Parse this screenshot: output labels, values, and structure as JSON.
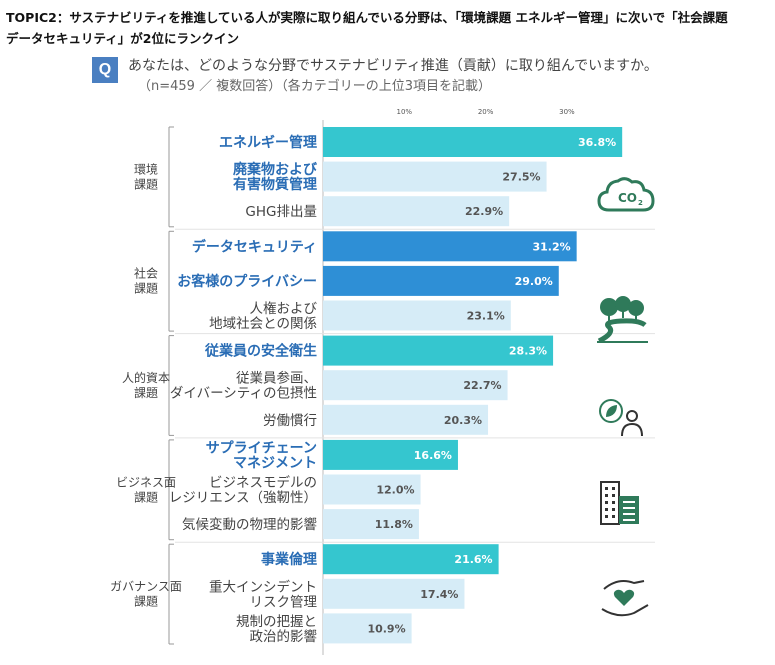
{
  "headline": {
    "line1": "TOPIC2：サステナビリティを推進している人が実際に取り組んでいる分野は、「環境課題 エネルギー管理」に次いで「社会課題",
    "line2": "データセキュリティ」が2位にランクイン"
  },
  "question": {
    "badge": "Q",
    "text": "あなたは、どのような分野でサステナビリティ推進（貢献）に取り組んでいますか。",
    "sub": "（n=459 ／ 複数回答）（各カテゴリーの上位3項目を記載）"
  },
  "colors": {
    "teal": "#35c6cf",
    "blue": "#2e8fd6",
    "light": "#d6ecf7",
    "icon": "#2f7a5a"
  },
  "chart_data": {
    "type": "bar",
    "orientation": "horizontal",
    "unit": "%",
    "xaxis_ticks": [
      "10%",
      "20%",
      "30%"
    ],
    "xlim": [
      0,
      40
    ],
    "groups": [
      {
        "label": "環境\n課題",
        "icon": "co2-cloud-icon",
        "items": [
          {
            "label": "エネルギー管理",
            "value": 36.8,
            "value_label": "36.8%",
            "style": "teal"
          },
          {
            "label": "廃棄物および\n有害物質管理",
            "value": 27.5,
            "value_label": "27.5%",
            "style": "light-hl"
          },
          {
            "label": "GHG排出量",
            "value": 22.9,
            "value_label": "22.9%",
            "style": "light"
          }
        ]
      },
      {
        "label": "社会\n課題",
        "icon": "forest-path-icon",
        "items": [
          {
            "label": "データセキュリティ",
            "value": 31.2,
            "value_label": "31.2%",
            "style": "blue"
          },
          {
            "label": "お客様のプライバシー",
            "value": 29.0,
            "value_label": "29.0%",
            "style": "blue"
          },
          {
            "label": "人権および\n地域社会との関係",
            "value": 23.1,
            "value_label": "23.1%",
            "style": "light"
          }
        ]
      },
      {
        "label": "人的資本\n課題",
        "icon": "people-leaf-icon",
        "items": [
          {
            "label": "従業員の安全衛生",
            "value": 28.3,
            "value_label": "28.3%",
            "style": "teal"
          },
          {
            "label": "従業員参画、\nダイバーシティの包摂性",
            "value": 22.7,
            "value_label": "22.7%",
            "style": "light"
          },
          {
            "label": "労働慣行",
            "value": 20.3,
            "value_label": "20.3%",
            "style": "light"
          }
        ]
      },
      {
        "label": "ビジネス面\n課題",
        "icon": "building-icon",
        "items": [
          {
            "label": "サプライチェーン\nマネジメント",
            "value": 16.6,
            "value_label": "16.6%",
            "style": "teal"
          },
          {
            "label": "ビジネスモデルの\nレジリエンス（強靭性）",
            "value": 12.0,
            "value_label": "12.0%",
            "style": "light"
          },
          {
            "label": "気候変動の物理的影響",
            "value": 11.8,
            "value_label": "11.8%",
            "style": "light"
          }
        ]
      },
      {
        "label": "ガバナンス面\n課題",
        "icon": "hands-heart-icon",
        "items": [
          {
            "label": "事業倫理",
            "value": 21.6,
            "value_label": "21.6%",
            "style": "teal"
          },
          {
            "label": "重大インシデント\nリスク管理",
            "value": 17.4,
            "value_label": "17.4%",
            "style": "light"
          },
          {
            "label": "規制の把握と\n政治的影響",
            "value": 10.9,
            "value_label": "10.9%",
            "style": "light"
          }
        ]
      }
    ]
  }
}
